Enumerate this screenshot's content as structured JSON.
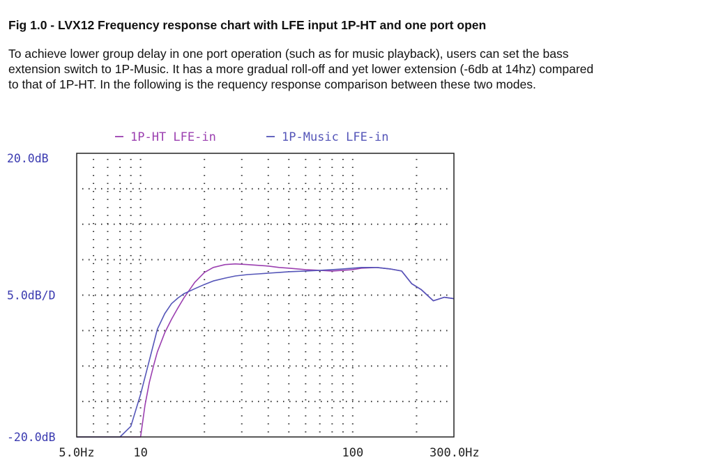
{
  "document": {
    "heading": "Fig 1.0 - LVX12 Frequency response chart with LFE input 1P-HT and one port open",
    "paragraph_lines": [
      "To achieve lower group delay in one port operation (such as for music playback), users can set the bass",
      "extension switch to 1P-Music. It has a more gradual roll-off and yet lower extension (-6db at 14hz) compared",
      "to that of 1P-HT. In the following is the requency response comparison between these two modes."
    ]
  },
  "chart_data": {
    "type": "line",
    "x_scale": "log",
    "xlim": [
      5,
      300
    ],
    "ylim": [
      -20,
      20
    ],
    "x_tick_labels": [
      "5.0Hz",
      "10",
      "100",
      "300.0Hz"
    ],
    "x_tick_values": [
      5,
      10,
      100,
      300
    ],
    "y_tick_labels": [
      "20.0dB",
      "5.0dB/D",
      "-20.0dB"
    ],
    "y_tick_values": [
      20,
      0,
      -20
    ],
    "grid": true,
    "legend_position": "top",
    "series": [
      {
        "name": "1P-HT LFE-in",
        "color": "#9b3fb0",
        "x": [
          5,
          9.4,
          10,
          10.5,
          11,
          11.5,
          12,
          13,
          14,
          15,
          16,
          18,
          20,
          22,
          25,
          28,
          32,
          36,
          40,
          45,
          50,
          60,
          70,
          80,
          90,
          100,
          110,
          130,
          150,
          170,
          190,
          210,
          240,
          270,
          300
        ],
        "y": [
          -20,
          -20,
          -20,
          -15.5,
          -12.3,
          -10,
          -8,
          -5.3,
          -3.4,
          -1.8,
          -0.4,
          1.8,
          3.2,
          3.9,
          4.3,
          4.4,
          4.3,
          4.2,
          4.1,
          3.9,
          3.8,
          3.6,
          3.5,
          3.4,
          3.5,
          3.6,
          3.8,
          3.9,
          3.7,
          3.4,
          1.6,
          0.8,
          -0.8,
          -0.3,
          -0.5
        ]
      },
      {
        "name": "1P-Music LFE-in",
        "color": "#5455b8",
        "x": [
          5,
          8,
          9,
          10,
          11,
          12,
          13,
          14,
          15,
          16,
          18,
          20,
          22,
          25,
          28,
          32,
          36,
          40,
          45,
          50,
          60,
          70,
          80,
          90,
          100,
          110,
          130,
          150,
          170,
          190,
          210,
          240,
          270,
          300
        ],
        "y": [
          -20,
          -20,
          -18.5,
          -14,
          -9.2,
          -4.8,
          -2.6,
          -1.2,
          -0.4,
          0.2,
          0.9,
          1.5,
          2,
          2.4,
          2.7,
          2.9,
          3,
          3.1,
          3.2,
          3.3,
          3.4,
          3.5,
          3.6,
          3.7,
          3.8,
          3.9,
          3.9,
          3.7,
          3.4,
          1.6,
          0.8,
          -0.8,
          -0.3,
          -0.5
        ]
      }
    ]
  }
}
